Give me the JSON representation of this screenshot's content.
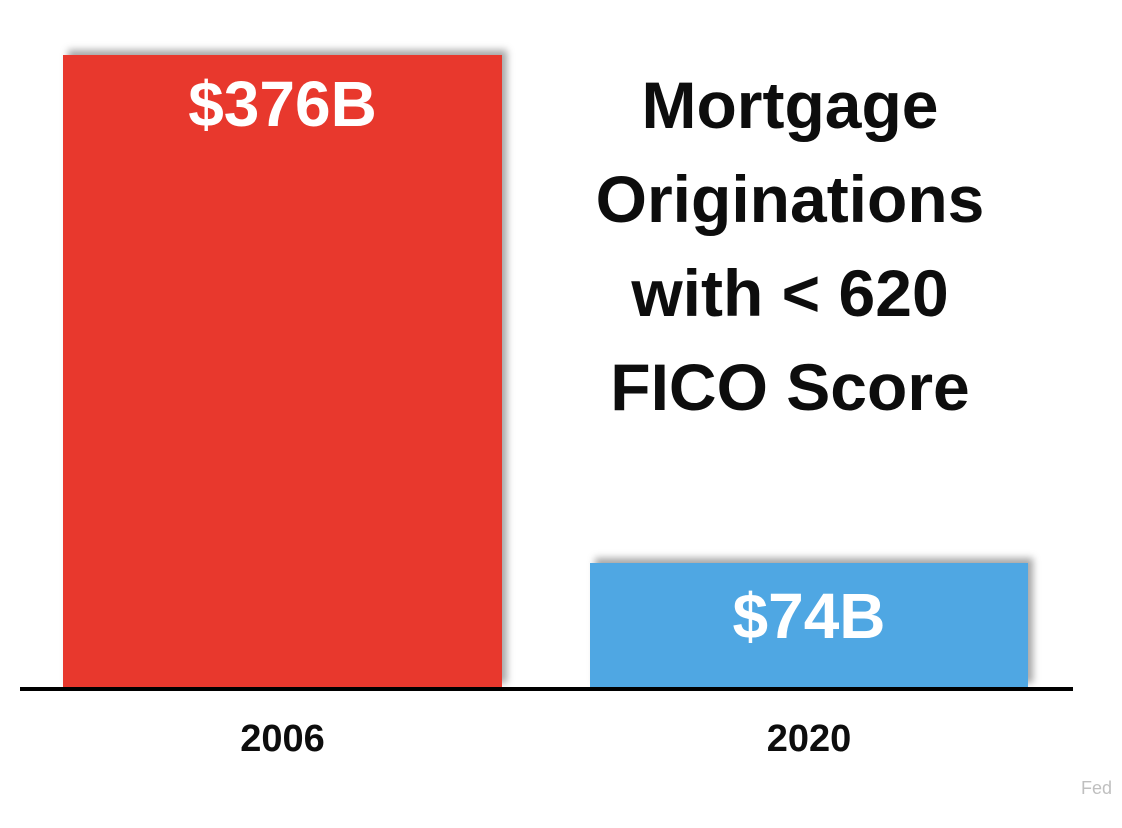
{
  "title": {
    "lines": [
      "Mortgage",
      "Originations",
      "with < 620",
      "FICO Score"
    ],
    "full": "Mortgage Originations with < 620 FICO Score"
  },
  "source": {
    "label": "Fed"
  },
  "colors": {
    "bar_2006": "#E8382D",
    "bar_2020": "#4FA7E3",
    "axis": "#000000",
    "source_text": "#BFBFBF",
    "title_text": "#0d0d0d",
    "value_text": "#FFFFFF"
  },
  "chart_data": {
    "type": "bar",
    "title": "Mortgage Originations with < 620 FICO Score",
    "categories": [
      "2006",
      "2020"
    ],
    "values": [
      376,
      74
    ],
    "unit": "billions of USD",
    "value_labels": [
      "$376B",
      "$74B"
    ],
    "series": [
      {
        "name": "Mortgage originations with < 620 FICO score",
        "values": [
          376,
          74
        ]
      }
    ],
    "colors": [
      "#E8382D",
      "#4FA7E3"
    ],
    "xlabel": "",
    "ylabel": "",
    "ylim": [
      0,
      376
    ],
    "legend": false,
    "gridlines": false,
    "y_axis_visible": false,
    "baseline_visible": true,
    "source": "Fed"
  }
}
